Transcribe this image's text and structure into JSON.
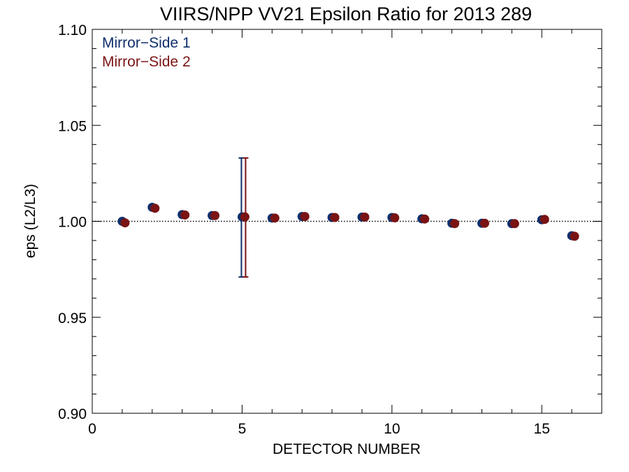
{
  "chart_data": {
    "type": "scatter",
    "title": "VIIRS/NPP VV21 Epsilon Ratio for 2013 289",
    "xlabel": "DETECTOR NUMBER",
    "ylabel": "eps (L2/L3)",
    "xlim": [
      0,
      17
    ],
    "ylim": [
      0.9,
      1.1
    ],
    "xticks": [
      0,
      5,
      10,
      15
    ],
    "xtick_labels": [
      "0",
      "5",
      "10",
      "15"
    ],
    "yticks": [
      0.9,
      0.95,
      1.0,
      1.05,
      1.1
    ],
    "ytick_labels": [
      "0.90",
      "0.95",
      "1.00",
      "1.05",
      "1.10"
    ],
    "reference_line": 1.0,
    "legend_position": "top-left",
    "series": [
      {
        "name": "Mirror−Side 1",
        "color": "#0f2f6b",
        "x": [
          1,
          2,
          3,
          4,
          5,
          6,
          7,
          8,
          9,
          10,
          11,
          12,
          13,
          14,
          15,
          16
        ],
        "y": [
          1.0,
          1.0073,
          1.0035,
          1.003,
          1.0023,
          1.0017,
          1.0025,
          1.002,
          1.0022,
          1.002,
          1.0013,
          0.999,
          0.999,
          0.9988,
          1.0008,
          0.9925
        ],
        "error_bar": {
          "x": 5,
          "low": 0.971,
          "high": 1.033
        }
      },
      {
        "name": "Mirror−Side 2",
        "color": "#7a1414",
        "x": [
          1,
          2,
          3,
          4,
          5,
          6,
          7,
          8,
          9,
          10,
          11,
          12,
          13,
          14,
          15,
          16
        ],
        "y": [
          0.9992,
          1.0068,
          1.0033,
          1.003,
          1.0023,
          1.0017,
          1.0025,
          1.002,
          1.0022,
          1.0018,
          1.0012,
          0.9988,
          0.999,
          0.9988,
          1.001,
          0.9922
        ],
        "error_bar": {
          "x": 5,
          "low": 0.971,
          "high": 1.033
        }
      }
    ]
  }
}
